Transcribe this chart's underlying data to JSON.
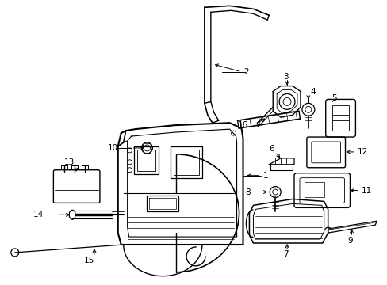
{
  "background_color": "#ffffff",
  "line_color": "#000000",
  "fig_width": 4.89,
  "fig_height": 3.6,
  "dpi": 100,
  "font_size": 7.5
}
